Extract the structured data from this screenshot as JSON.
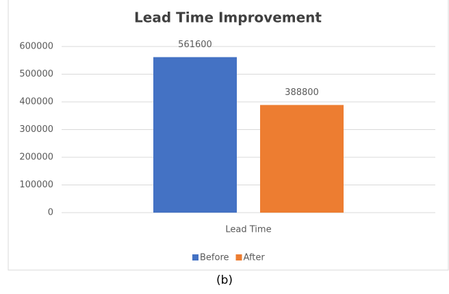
{
  "chart_data": {
    "type": "bar",
    "title": "Lead Time Improvement",
    "categories": [
      "Lead Time"
    ],
    "series": [
      {
        "name": "Before",
        "color": "#4472c4",
        "values": [
          561600
        ]
      },
      {
        "name": "After",
        "color": "#ed7d31",
        "values": [
          388800
        ]
      }
    ],
    "ylim": [
      0,
      600000
    ],
    "yticks": [
      0,
      100000,
      200000,
      300000,
      400000,
      500000,
      600000
    ],
    "grid": true,
    "legend": "bottom"
  },
  "caption": "(b)"
}
